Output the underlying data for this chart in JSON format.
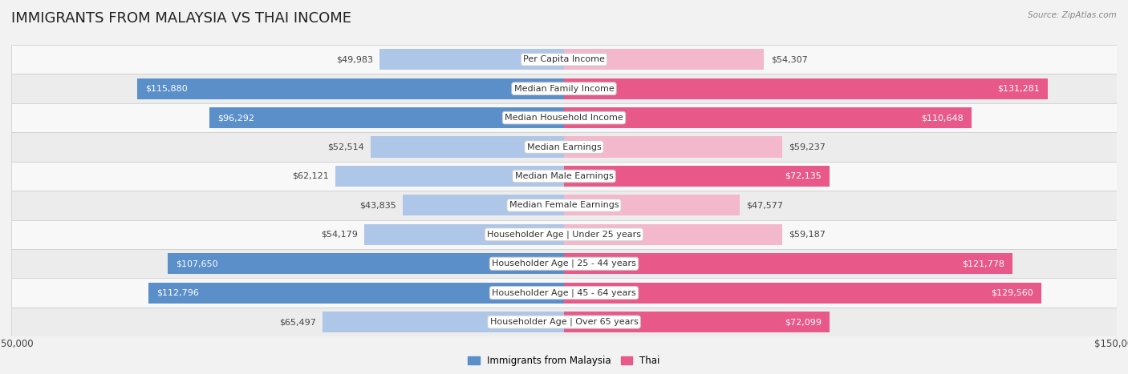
{
  "title": "IMMIGRANTS FROM MALAYSIA VS THAI INCOME",
  "source": "Source: ZipAtlas.com",
  "categories": [
    "Per Capita Income",
    "Median Family Income",
    "Median Household Income",
    "Median Earnings",
    "Median Male Earnings",
    "Median Female Earnings",
    "Householder Age | Under 25 years",
    "Householder Age | 25 - 44 years",
    "Householder Age | 45 - 64 years",
    "Householder Age | Over 65 years"
  ],
  "malaysia_values": [
    49983,
    115880,
    96292,
    52514,
    62121,
    43835,
    54179,
    107650,
    112796,
    65497
  ],
  "thai_values": [
    54307,
    131281,
    110648,
    59237,
    72135,
    47577,
    59187,
    121778,
    129560,
    72099
  ],
  "malaysia_labels": [
    "$49,983",
    "$115,880",
    "$96,292",
    "$52,514",
    "$62,121",
    "$43,835",
    "$54,179",
    "$107,650",
    "$112,796",
    "$65,497"
  ],
  "thai_labels": [
    "$54,307",
    "$131,281",
    "$110,648",
    "$59,237",
    "$72,135",
    "$47,577",
    "$59,187",
    "$121,778",
    "$129,560",
    "$72,099"
  ],
  "malaysia_color_light": "#aec6e8",
  "malaysia_color_dark": "#5b8fc9",
  "thai_color_light": "#f4b8cc",
  "thai_color_dark": "#e8598a",
  "inside_threshold": 0.45,
  "max_value": 150000,
  "legend_malaysia": "Immigrants from Malaysia",
  "legend_thai": "Thai",
  "background_color": "#f2f2f2",
  "row_colors": [
    "#f8f8f8",
    "#ececec"
  ],
  "title_fontsize": 13,
  "label_fontsize": 8,
  "category_fontsize": 8,
  "axis_label_fontsize": 8.5
}
